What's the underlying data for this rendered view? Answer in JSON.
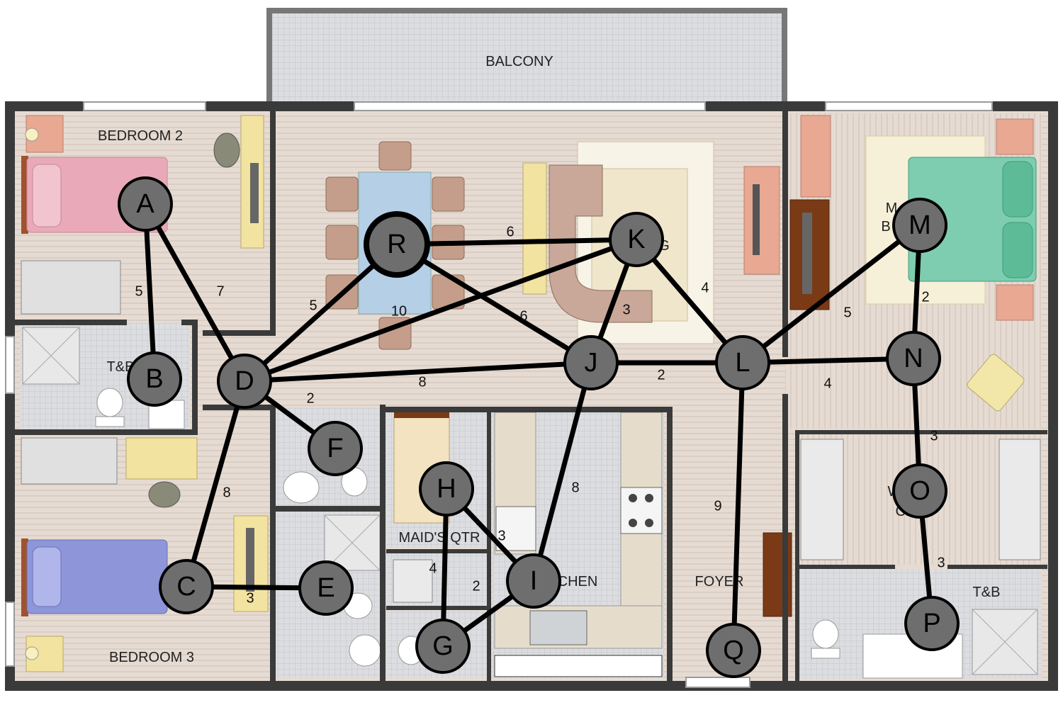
{
  "rooms": {
    "balcony": "BALCONY",
    "bedroom2": "BEDROOM 2",
    "bedroom3": "BEDROOM 3",
    "tb_left": "T&B",
    "tb_right": "T&B",
    "maids_qtr": "MAID'S QTR",
    "kitchen": "CHEN",
    "foyer": "FOYER",
    "master_partial_1": "M",
    "master_partial_2": "B",
    "living_partial": "G",
    "closet_partial_1": "W",
    "closet_partial_2": "CLO"
  },
  "graph": {
    "nodes": [
      {
        "id": "A",
        "label": "A"
      },
      {
        "id": "B",
        "label": "B"
      },
      {
        "id": "C",
        "label": "C"
      },
      {
        "id": "D",
        "label": "D"
      },
      {
        "id": "E",
        "label": "E"
      },
      {
        "id": "F",
        "label": "F"
      },
      {
        "id": "G",
        "label": "G"
      },
      {
        "id": "H",
        "label": "H"
      },
      {
        "id": "I",
        "label": "I"
      },
      {
        "id": "J",
        "label": "J"
      },
      {
        "id": "K",
        "label": "K"
      },
      {
        "id": "L",
        "label": "L"
      },
      {
        "id": "M",
        "label": "M"
      },
      {
        "id": "N",
        "label": "N"
      },
      {
        "id": "O",
        "label": "O"
      },
      {
        "id": "P",
        "label": "P"
      },
      {
        "id": "Q",
        "label": "Q"
      },
      {
        "id": "R",
        "label": "R"
      }
    ],
    "edges": [
      {
        "from": "A",
        "to": "B",
        "weight": "5"
      },
      {
        "from": "A",
        "to": "D",
        "weight": "7"
      },
      {
        "from": "D",
        "to": "R",
        "weight": "5"
      },
      {
        "from": "D",
        "to": "K",
        "weight": "10"
      },
      {
        "from": "D",
        "to": "J",
        "weight": "8"
      },
      {
        "from": "D",
        "to": "F",
        "weight": "2"
      },
      {
        "from": "D",
        "to": "C",
        "weight": "8"
      },
      {
        "from": "C",
        "to": "E",
        "weight": "3"
      },
      {
        "from": "R",
        "to": "K",
        "weight": "6"
      },
      {
        "from": "R",
        "to": "J",
        "weight": "6"
      },
      {
        "from": "K",
        "to": "J",
        "weight": "3"
      },
      {
        "from": "K",
        "to": "L",
        "weight": "4"
      },
      {
        "from": "J",
        "to": "L",
        "weight": "2"
      },
      {
        "from": "J",
        "to": "I",
        "weight": "8"
      },
      {
        "from": "L",
        "to": "M",
        "weight": "5"
      },
      {
        "from": "L",
        "to": "N",
        "weight": "4"
      },
      {
        "from": "L",
        "to": "Q",
        "weight": "9"
      },
      {
        "from": "M",
        "to": "N",
        "weight": "2"
      },
      {
        "from": "N",
        "to": "O",
        "weight": "3"
      },
      {
        "from": "O",
        "to": "P",
        "weight": "3"
      },
      {
        "from": "H",
        "to": "I",
        "weight": "3"
      },
      {
        "from": "H",
        "to": "G",
        "weight": "4"
      },
      {
        "from": "G",
        "to": "I",
        "weight": "2"
      }
    ]
  },
  "colors": {
    "wall": "#3a3a3a",
    "wood_floor": "#e3d6cc",
    "tile_floor": "#d9dadc",
    "node_fill": "#6e6e6e",
    "edge": "#000000"
  }
}
